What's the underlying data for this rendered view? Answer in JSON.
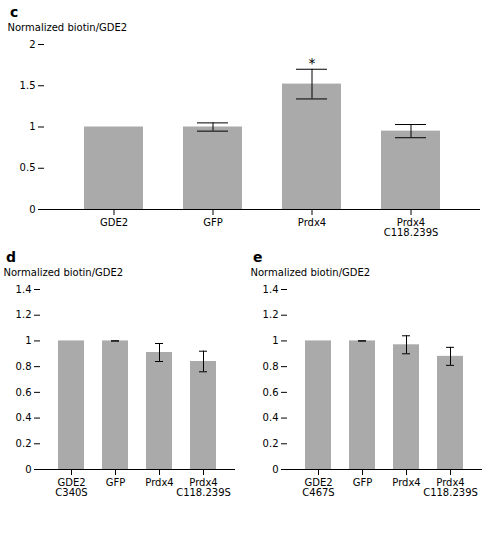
{
  "chart_data": [
    {
      "type": "bar",
      "title": "c",
      "categories": [
        "GDE2",
        "GFP",
        "Prdx4",
        "Prdx4\nC118.239S"
      ],
      "values": [
        1.0,
        1.0,
        1.52,
        0.95
      ],
      "errors": [
        null,
        0.05,
        0.18,
        0.08
      ],
      "color": "#aaaaaa",
      "ylabel": "Normalized biotin/GDE2",
      "ylim": [
        0,
        2.0
      ],
      "yticks": [
        0,
        0.5,
        1,
        1.5,
        2
      ],
      "annotations": [
        {
          "text": "*",
          "x": "Prdx4",
          "y": 1.72
        }
      ]
    },
    {
      "type": "bar",
      "title": "d",
      "categories": [
        "GDE2\nC340S",
        "GFP",
        "Prdx4",
        "Prdx4\nC118.239S"
      ],
      "values": [
        1.0,
        1.0,
        0.91,
        0.84
      ],
      "errors": [
        null,
        0.0,
        0.07,
        0.08
      ],
      "color": "#aaaaaa",
      "ylabel": "Normalized biotin/GDE2",
      "ylim": [
        0,
        1.4
      ],
      "yticks": [
        0,
        0.2,
        0.4,
        0.6,
        0.8,
        1,
        1.2,
        1.4
      ]
    },
    {
      "type": "bar",
      "title": "e",
      "categories": [
        "GDE2\nC467S",
        "GFP",
        "Prdx4",
        "Prdx4\nC118.239S"
      ],
      "values": [
        1.0,
        1.0,
        0.97,
        0.88
      ],
      "errors": [
        null,
        0.0,
        0.07,
        0.07
      ],
      "color": "#aaaaaa",
      "ylabel": "Normalized biotin/GDE2",
      "ylim": [
        0,
        1.4
      ],
      "yticks": [
        0,
        0.2,
        0.4,
        0.6,
        0.8,
        1,
        1.2,
        1.4
      ]
    }
  ]
}
